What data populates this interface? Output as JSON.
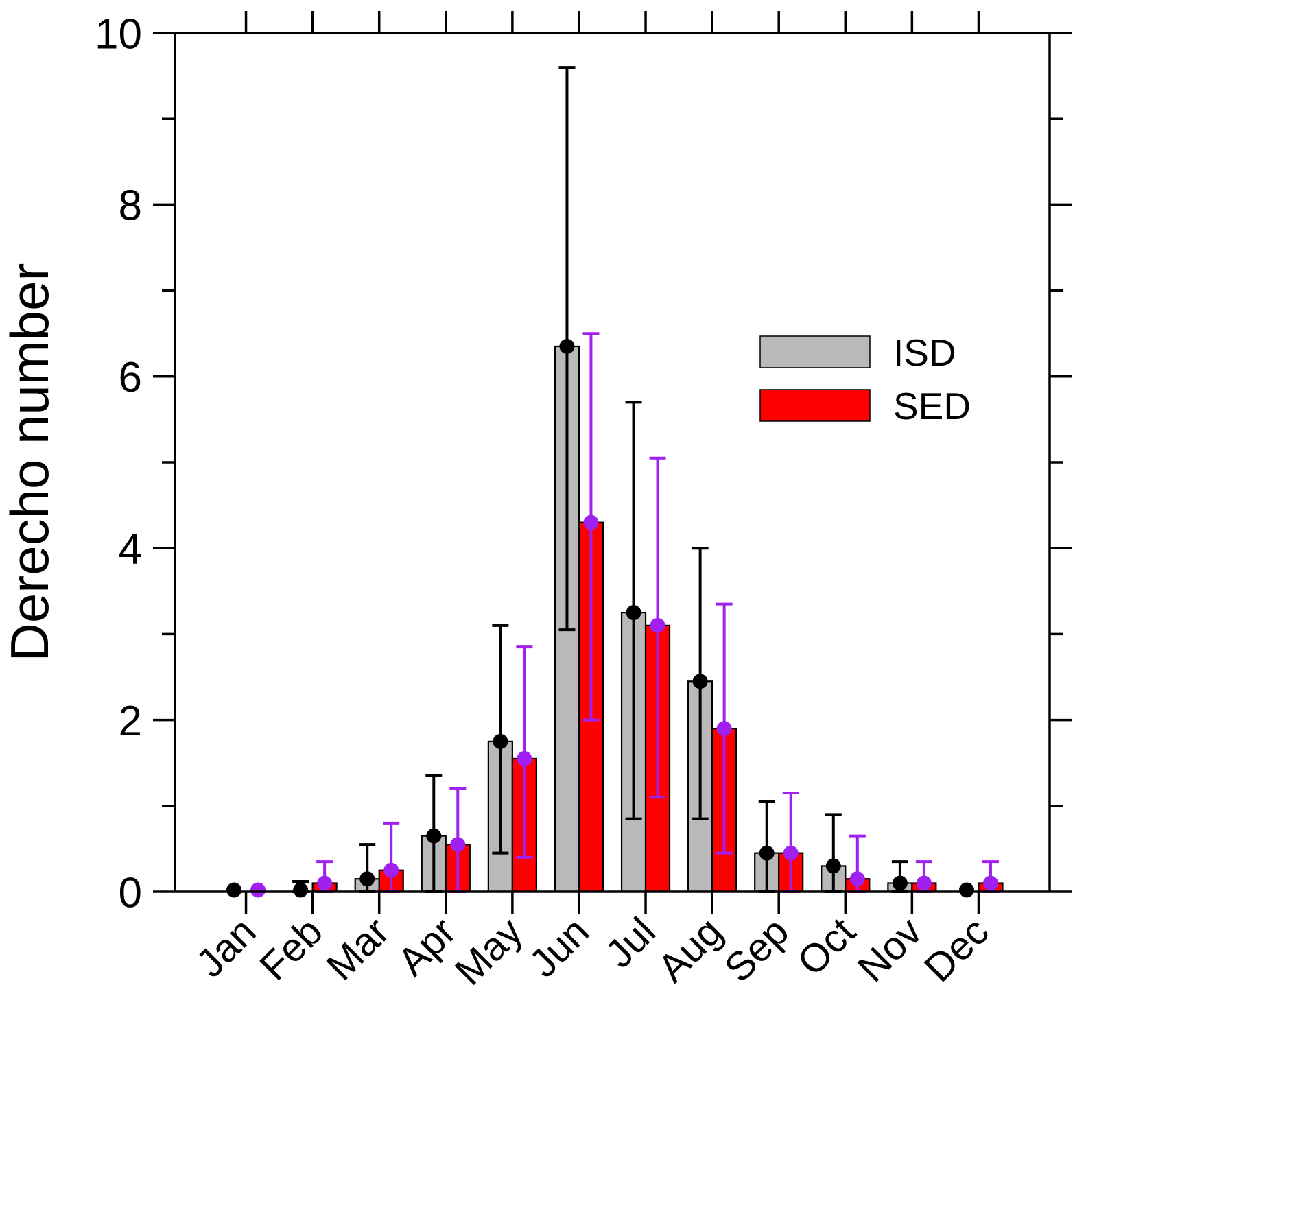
{
  "chart_data": {
    "type": "bar",
    "title": "",
    "xlabel": "",
    "ylabel": "Derecho number",
    "ylim": [
      0,
      10
    ],
    "yticks": [
      0,
      2,
      4,
      6,
      8,
      10
    ],
    "yminor": [
      1,
      3,
      5,
      7,
      9
    ],
    "grid": false,
    "legend_position": "upper right",
    "xticklabel_rotation": 45,
    "categories": [
      "Jan",
      "Feb",
      "Mar",
      "Apr",
      "May",
      "Jun",
      "Jul",
      "Aug",
      "Sep",
      "Oct",
      "Nov",
      "Dec"
    ],
    "series": [
      {
        "name": "ISD",
        "color": "#b9b9b9",
        "marker_color": "#000000",
        "error_color": "#000000",
        "values": [
          0.02,
          0.02,
          0.15,
          0.65,
          1.75,
          6.35,
          3.25,
          2.45,
          0.45,
          0.3,
          0.1,
          0.02
        ],
        "err_lo": [
          0,
          0,
          0,
          0,
          0.45,
          3.05,
          0.85,
          0.85,
          0,
          0,
          0,
          0
        ],
        "err_hi": [
          0.02,
          0.12,
          0.55,
          1.35,
          3.1,
          9.6,
          5.7,
          4.0,
          1.05,
          0.9,
          0.35,
          0.02
        ]
      },
      {
        "name": "SED",
        "color": "#ff0000",
        "marker_color": "#a020f0",
        "error_color": "#a020f0",
        "values": [
          0.02,
          0.1,
          0.25,
          0.55,
          1.55,
          4.3,
          3.1,
          1.9,
          0.45,
          0.15,
          0.1,
          0.1
        ],
        "err_lo": [
          0,
          0,
          0,
          0,
          0.4,
          2.0,
          1.1,
          0.45,
          0,
          0,
          0,
          0
        ],
        "err_hi": [
          0.02,
          0.35,
          0.8,
          1.2,
          2.85,
          6.5,
          5.05,
          3.35,
          1.15,
          0.65,
          0.35,
          0.35
        ]
      }
    ]
  },
  "figure": {
    "background": "#ffffff",
    "axis_color": "#000000"
  }
}
